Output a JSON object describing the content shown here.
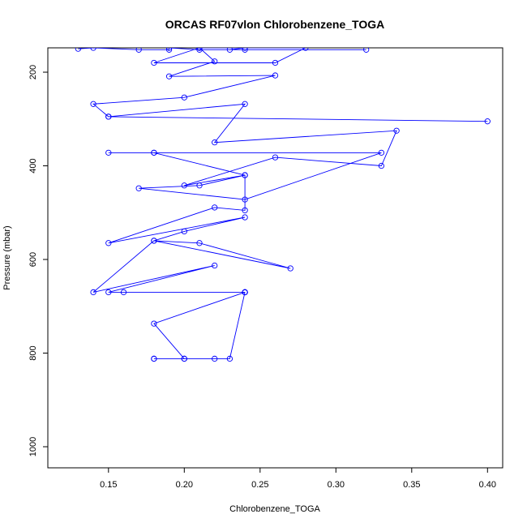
{
  "chart_data": {
    "type": "line",
    "title": "ORCAS RF07vlon Chlorobenzene_TOGA",
    "xlabel": "Chlorobenzene_TOGA",
    "ylabel": "Pressure (mbar)",
    "xlim": [
      0.11,
      0.41
    ],
    "ylim": [
      1045,
      148
    ],
    "y_inverted": true,
    "x_ticks": [
      0.15,
      0.2,
      0.25,
      0.3,
      0.35,
      0.4
    ],
    "x_tick_labels": [
      "0.15",
      "0.20",
      "0.25",
      "0.30",
      "0.35",
      "0.40"
    ],
    "y_ticks": [
      200,
      400,
      600,
      800,
      1000
    ],
    "y_tick_labels": [
      "200",
      "400",
      "600",
      "800",
      "1000"
    ],
    "grid": false,
    "series_color": "#0000ff",
    "marker": "open-circle",
    "series": [
      {
        "x": [
          0.13,
          0.14,
          0.17,
          0.19,
          0.19,
          0.21,
          0.24,
          0.32,
          0.23,
          0.24,
          0.21,
          0.18,
          0.26,
          0.28,
          0.21,
          0.22,
          0.19,
          0.26,
          0.2,
          0.14,
          0.15,
          0.4,
          0.15,
          0.24,
          0.22,
          0.34,
          0.33,
          0.26,
          0.2,
          0.24,
          0.18,
          0.18,
          0.15,
          0.33,
          0.24,
          0.17,
          0.21,
          0.24,
          0.24,
          0.22,
          0.15,
          0.24,
          0.2,
          0.18,
          0.21,
          0.27,
          0.18,
          0.14,
          0.22,
          0.15,
          0.16,
          0.24,
          0.18,
          0.2,
          0.18,
          0.18,
          0.2,
          0.22,
          0.23,
          0.24,
          0.24,
          0.24
        ],
        "y": [
          150,
          148,
          152,
          152,
          148,
          152,
          152,
          152,
          152,
          148,
          148,
          180,
          180,
          148,
          148,
          177,
          209,
          207,
          254,
          268,
          295,
          305,
          295,
          268,
          350,
          325,
          400,
          382,
          442,
          420,
          372,
          372,
          372,
          372,
          472,
          448,
          442,
          420,
          495,
          489,
          565,
          510,
          540,
          560,
          565,
          619,
          560,
          670,
          613,
          670,
          670,
          670,
          737,
          812,
          812,
          812,
          812,
          812,
          812,
          670,
          670,
          670
        ]
      }
    ]
  }
}
